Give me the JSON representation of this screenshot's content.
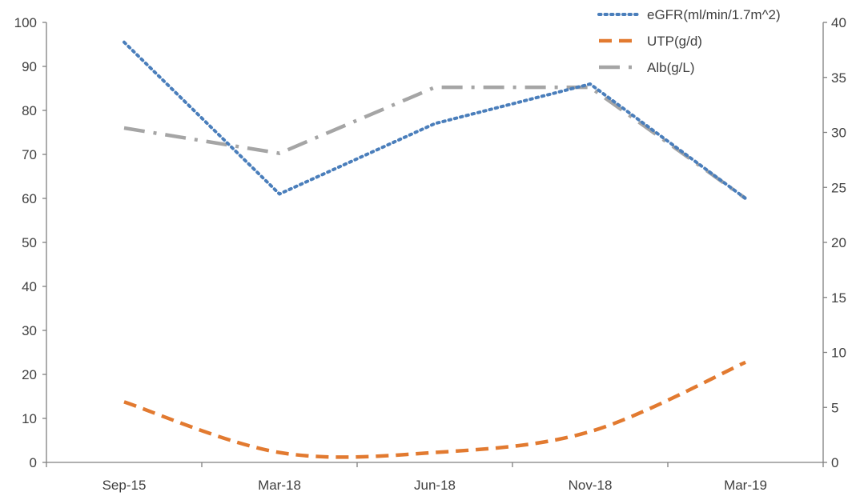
{
  "chart_data": {
    "type": "line",
    "categories": [
      "Sep-15",
      "Mar-18",
      "Jun-18",
      "Nov-18",
      "Mar-19"
    ],
    "y_left": {
      "ylim": [
        0,
        100
      ],
      "ticks": [
        0,
        10,
        20,
        30,
        40,
        50,
        60,
        70,
        80,
        90,
        100
      ]
    },
    "y_right": {
      "ylim": [
        0,
        40
      ],
      "ticks": [
        0,
        5,
        10,
        15,
        20,
        25,
        30,
        35,
        40
      ]
    },
    "grid": false,
    "legend_position": "top-right",
    "series": [
      {
        "name": "eGFR(ml/min/1.7m^2)",
        "axis": "left",
        "color": "#4A7EBB",
        "style": "dotted",
        "curve": "straight",
        "values": [
          95.5,
          61,
          77,
          86,
          60
        ]
      },
      {
        "name": "UTP(g/d)",
        "axis": "right",
        "color": "#E27A30",
        "style": "dashed",
        "curve": "smooth",
        "values": [
          5.5,
          0.9,
          0.9,
          2.8,
          9.1
        ]
      },
      {
        "name": "Alb(g/L)",
        "axis": "right",
        "color": "#A5A5A5",
        "style": "dash-dot",
        "curve": "straight",
        "values": [
          30.4,
          28.1,
          34.1,
          34.1,
          24
        ]
      }
    ]
  }
}
